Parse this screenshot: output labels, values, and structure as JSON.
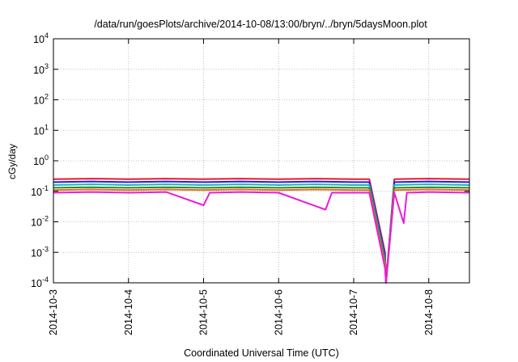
{
  "chart_data": {
    "type": "line",
    "title": "/data/run/goesPlots/archive/2014-10-08/13:00/bryn/../bryn/5daysMoon.plot",
    "xlabel": "Coordinated Universal Time (UTC)",
    "ylabel": "cGy/day",
    "y_scale": "log",
    "ylim": [
      0.0001,
      10000
    ],
    "xlim": [
      "2014-10-03 00:00",
      "2014-10-08 13:00"
    ],
    "grid": true,
    "x_tick_labels": [
      "2014-10-3",
      "2014-10-4",
      "2014-10-5",
      "2014-10-6",
      "2014-10-7",
      "2014-10-8"
    ],
    "y_tick_labels": [
      {
        "base": "10",
        "exp": "-4"
      },
      {
        "base": "10",
        "exp": "-3"
      },
      {
        "base": "10",
        "exp": "-2"
      },
      {
        "base": "10",
        "exp": "-1"
      },
      {
        "base": "10",
        "exp": "0"
      },
      {
        "base": "10",
        "exp": "1"
      },
      {
        "base": "10",
        "exp": "2"
      },
      {
        "base": "10",
        "exp": "3"
      },
      {
        "base": "10",
        "exp": "4"
      }
    ],
    "series": [
      {
        "color": "#e8182c",
        "values": [
          [
            "2014-10-03 00:00",
            0.25
          ],
          [
            "2014-10-03 12:00",
            0.26
          ],
          [
            "2014-10-04 00:00",
            0.25
          ],
          [
            "2014-10-04 12:00",
            0.26
          ],
          [
            "2014-10-05 00:00",
            0.25
          ],
          [
            "2014-10-05 12:00",
            0.26
          ],
          [
            "2014-10-06 00:00",
            0.25
          ],
          [
            "2014-10-06 12:00",
            0.26
          ],
          [
            "2014-10-07 00:00",
            0.25
          ],
          [
            "2014-10-07 05:00",
            0.25
          ],
          [
            "2014-10-07 10:00",
            0.001
          ],
          [
            "2014-10-07 10:20",
            0.0001
          ],
          [
            "2014-10-07 13:00",
            0.25
          ],
          [
            "2014-10-08 00:00",
            0.26
          ],
          [
            "2014-10-08 13:00",
            0.25
          ]
        ]
      },
      {
        "color": "#1e1ee0",
        "values": [
          [
            "2014-10-03 00:00",
            0.2
          ],
          [
            "2014-10-03 12:00",
            0.21
          ],
          [
            "2014-10-04 00:00",
            0.2
          ],
          [
            "2014-10-04 12:00",
            0.21
          ],
          [
            "2014-10-05 00:00",
            0.2
          ],
          [
            "2014-10-05 12:00",
            0.21
          ],
          [
            "2014-10-06 00:00",
            0.2
          ],
          [
            "2014-10-06 12:00",
            0.21
          ],
          [
            "2014-10-07 00:00",
            0.2
          ],
          [
            "2014-10-07 05:00",
            0.2
          ],
          [
            "2014-10-07 10:00",
            0.0008
          ],
          [
            "2014-10-07 10:20",
            0.0001
          ],
          [
            "2014-10-07 13:00",
            0.2
          ],
          [
            "2014-10-08 00:00",
            0.21
          ],
          [
            "2014-10-08 13:00",
            0.2
          ]
        ]
      },
      {
        "color": "#1eb4b4",
        "values": [
          [
            "2014-10-03 00:00",
            0.16
          ],
          [
            "2014-10-03 12:00",
            0.17
          ],
          [
            "2014-10-04 00:00",
            0.16
          ],
          [
            "2014-10-04 12:00",
            0.17
          ],
          [
            "2014-10-05 00:00",
            0.16
          ],
          [
            "2014-10-05 12:00",
            0.17
          ],
          [
            "2014-10-06 00:00",
            0.16
          ],
          [
            "2014-10-06 12:00",
            0.17
          ],
          [
            "2014-10-07 00:00",
            0.16
          ],
          [
            "2014-10-07 05:00",
            0.16
          ],
          [
            "2014-10-07 10:00",
            0.0006
          ],
          [
            "2014-10-07 10:20",
            0.0001
          ],
          [
            "2014-10-07 13:00",
            0.16
          ],
          [
            "2014-10-08 00:00",
            0.17
          ],
          [
            "2014-10-08 13:00",
            0.16
          ]
        ]
      },
      {
        "color": "#2a8a2a",
        "values": [
          [
            "2014-10-03 00:00",
            0.13
          ],
          [
            "2014-10-03 12:00",
            0.135
          ],
          [
            "2014-10-04 00:00",
            0.13
          ],
          [
            "2014-10-04 12:00",
            0.135
          ],
          [
            "2014-10-05 00:00",
            0.13
          ],
          [
            "2014-10-05 12:00",
            0.135
          ],
          [
            "2014-10-06 00:00",
            0.13
          ],
          [
            "2014-10-06 12:00",
            0.135
          ],
          [
            "2014-10-07 00:00",
            0.13
          ],
          [
            "2014-10-07 05:00",
            0.13
          ],
          [
            "2014-10-07 10:00",
            0.0005
          ],
          [
            "2014-10-07 10:20",
            0.0001
          ],
          [
            "2014-10-07 13:00",
            0.13
          ],
          [
            "2014-10-08 00:00",
            0.135
          ],
          [
            "2014-10-08 13:00",
            0.13
          ]
        ]
      },
      {
        "color": "#e07020",
        "values": [
          [
            "2014-10-03 00:00",
            0.11
          ],
          [
            "2014-10-03 12:00",
            0.115
          ],
          [
            "2014-10-04 00:00",
            0.11
          ],
          [
            "2014-10-04 12:00",
            0.115
          ],
          [
            "2014-10-05 00:00",
            0.11
          ],
          [
            "2014-10-05 12:00",
            0.115
          ],
          [
            "2014-10-06 00:00",
            0.11
          ],
          [
            "2014-10-06 12:00",
            0.115
          ],
          [
            "2014-10-07 00:00",
            0.11
          ],
          [
            "2014-10-07 05:00",
            0.11
          ],
          [
            "2014-10-07 10:00",
            0.0004
          ],
          [
            "2014-10-07 10:20",
            0.0001
          ],
          [
            "2014-10-07 13:00",
            0.11
          ],
          [
            "2014-10-08 00:00",
            0.115
          ],
          [
            "2014-10-08 13:00",
            0.11
          ]
        ]
      },
      {
        "color": "#e81ed8",
        "values": [
          [
            "2014-10-03 00:00",
            0.09
          ],
          [
            "2014-10-03 12:00",
            0.095
          ],
          [
            "2014-10-04 00:00",
            0.09
          ],
          [
            "2014-10-04 12:00",
            0.095
          ],
          [
            "2014-10-05 00:00",
            0.035
          ],
          [
            "2014-10-05 02:00",
            0.09
          ],
          [
            "2014-10-05 12:00",
            0.095
          ],
          [
            "2014-10-06 00:00",
            0.09
          ],
          [
            "2014-10-06 15:00",
            0.025
          ],
          [
            "2014-10-06 17:00",
            0.09
          ],
          [
            "2014-10-07 00:00",
            0.09
          ],
          [
            "2014-10-07 05:00",
            0.09
          ],
          [
            "2014-10-07 10:00",
            0.0003
          ],
          [
            "2014-10-07 10:20",
            0.0001
          ],
          [
            "2014-10-07 13:00",
            0.09
          ],
          [
            "2014-10-07 16:00",
            0.009
          ],
          [
            "2014-10-07 17:00",
            0.09
          ],
          [
            "2014-10-08 00:00",
            0.095
          ],
          [
            "2014-10-08 13:00",
            0.09
          ]
        ]
      }
    ]
  }
}
